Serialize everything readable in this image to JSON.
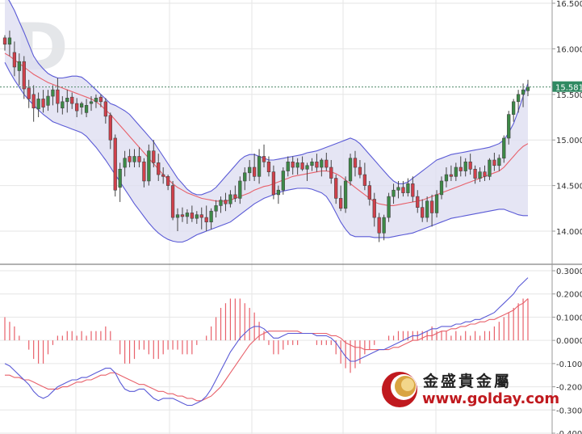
{
  "chart_data": [
    {
      "type": "candlestick",
      "indicators": [
        "Bollinger Bands",
        "Moving Average"
      ],
      "ylim": [
        13.5,
        16.5
      ],
      "y_ticks": [
        "16.500",
        "16.000",
        "15.500",
        "15.000",
        "14.500",
        "14.000"
      ],
      "last_price_label": "15.581",
      "last_price": 15.581,
      "grid": true,
      "background_letters": "D",
      "colors": {
        "up": "#3c8a46",
        "down": "#d2404b",
        "band": "#5a5ad6",
        "band_fill": "#dcdcf0",
        "ma": "#e8606a",
        "price_line": "#4f8a6a"
      },
      "candles": [
        [
          16.12,
          16.15,
          15.98,
          16.05
        ],
        [
          16.05,
          16.2,
          15.92,
          16.12
        ],
        [
          15.96,
          16.08,
          15.7,
          15.8
        ],
        [
          15.76,
          15.95,
          15.6,
          15.86
        ],
        [
          15.86,
          15.92,
          15.45,
          15.56
        ],
        [
          15.57,
          15.66,
          15.35,
          15.45
        ],
        [
          15.5,
          15.6,
          15.2,
          15.35
        ],
        [
          15.34,
          15.52,
          15.25,
          15.45
        ],
        [
          15.45,
          15.55,
          15.3,
          15.36
        ],
        [
          15.38,
          15.55,
          15.32,
          15.48
        ],
        [
          15.48,
          15.6,
          15.38,
          15.55
        ],
        [
          15.55,
          15.68,
          15.3,
          15.4
        ],
        [
          15.35,
          15.48,
          15.28,
          15.42
        ],
        [
          15.42,
          15.55,
          15.3,
          15.46
        ],
        [
          15.47,
          15.52,
          15.34,
          15.4
        ],
        [
          15.4,
          15.46,
          15.25,
          15.32
        ],
        [
          15.36,
          15.42,
          15.28,
          15.4
        ],
        [
          15.3,
          15.45,
          15.25,
          15.38
        ],
        [
          15.4,
          15.48,
          15.32,
          15.42
        ],
        [
          15.42,
          15.5,
          15.35,
          15.46
        ],
        [
          15.47,
          15.5,
          15.36,
          15.42
        ],
        [
          15.42,
          15.46,
          15.18,
          15.26
        ],
        [
          15.27,
          15.3,
          14.9,
          15.0
        ],
        [
          15.02,
          15.06,
          14.38,
          14.45
        ],
        [
          14.48,
          14.75,
          14.32,
          14.68
        ],
        [
          14.7,
          14.88,
          14.6,
          14.8
        ],
        [
          14.82,
          14.9,
          14.7,
          14.76
        ],
        [
          14.76,
          14.9,
          14.7,
          14.82
        ],
        [
          14.82,
          14.92,
          14.7,
          14.76
        ],
        [
          14.76,
          14.8,
          14.48,
          14.55
        ],
        [
          14.55,
          14.95,
          14.5,
          14.88
        ],
        [
          14.88,
          15.0,
          14.7,
          14.75
        ],
        [
          14.75,
          14.85,
          14.55,
          14.62
        ],
        [
          14.62,
          14.7,
          14.52,
          14.6
        ],
        [
          14.6,
          14.62,
          14.45,
          14.5
        ],
        [
          14.5,
          14.55,
          14.12,
          14.15
        ],
        [
          14.15,
          14.25,
          14.0,
          14.18
        ],
        [
          14.18,
          14.26,
          14.1,
          14.16
        ],
        [
          14.16,
          14.24,
          14.08,
          14.2
        ],
        [
          14.2,
          14.28,
          14.1,
          14.14
        ],
        [
          14.14,
          14.22,
          14.08,
          14.18
        ],
        [
          14.18,
          14.26,
          14.02,
          14.15
        ],
        [
          14.15,
          14.28,
          14.0,
          14.1
        ],
        [
          14.1,
          14.25,
          14.02,
          14.22
        ],
        [
          14.22,
          14.34,
          14.15,
          14.28
        ],
        [
          14.28,
          14.38,
          14.2,
          14.34
        ],
        [
          14.34,
          14.42,
          14.22,
          14.3
        ],
        [
          14.3,
          14.45,
          14.26,
          14.4
        ],
        [
          14.4,
          14.5,
          14.32,
          14.36
        ],
        [
          14.36,
          14.6,
          14.3,
          14.55
        ],
        [
          14.55,
          14.7,
          14.45,
          14.64
        ],
        [
          14.64,
          14.78,
          14.55,
          14.7
        ],
        [
          14.7,
          14.85,
          14.55,
          14.6
        ],
        [
          14.6,
          14.9,
          14.52,
          14.82
        ],
        [
          14.82,
          14.95,
          14.7,
          14.76
        ],
        [
          14.76,
          14.82,
          14.6,
          14.65
        ],
        [
          14.65,
          14.72,
          14.35,
          14.4
        ],
        [
          14.4,
          14.5,
          14.3,
          14.45
        ],
        [
          14.45,
          14.7,
          14.4,
          14.66
        ],
        [
          14.66,
          14.82,
          14.6,
          14.76
        ],
        [
          14.76,
          14.82,
          14.62,
          14.7
        ],
        [
          14.7,
          14.8,
          14.62,
          14.75
        ],
        [
          14.75,
          14.82,
          14.66,
          14.68
        ],
        [
          14.68,
          14.75,
          14.55,
          14.72
        ],
        [
          14.72,
          14.8,
          14.66,
          14.76
        ],
        [
          14.76,
          14.85,
          14.65,
          14.7
        ],
        [
          14.7,
          14.8,
          14.6,
          14.78
        ],
        [
          14.78,
          14.86,
          14.66,
          14.7
        ],
        [
          14.7,
          14.78,
          14.52,
          14.58
        ],
        [
          14.58,
          14.62,
          14.3,
          14.36
        ],
        [
          14.36,
          14.5,
          14.22,
          14.25
        ],
        [
          14.25,
          14.6,
          14.2,
          14.55
        ],
        [
          14.55,
          14.85,
          14.5,
          14.8
        ],
        [
          14.8,
          14.88,
          14.6,
          14.7
        ],
        [
          14.7,
          14.78,
          14.58,
          14.62
        ],
        [
          14.62,
          14.75,
          14.45,
          14.5
        ],
        [
          14.5,
          14.55,
          14.28,
          14.35
        ],
        [
          14.35,
          14.42,
          14.05,
          14.15
        ],
        [
          14.15,
          14.2,
          13.88,
          13.98
        ],
        [
          13.98,
          14.18,
          13.9,
          14.15
        ],
        [
          14.15,
          14.42,
          14.1,
          14.38
        ],
        [
          14.38,
          14.52,
          14.3,
          14.45
        ],
        [
          14.45,
          14.55,
          14.36,
          14.48
        ],
        [
          14.48,
          14.55,
          14.38,
          14.42
        ],
        [
          14.42,
          14.58,
          14.38,
          14.52
        ],
        [
          14.52,
          14.6,
          14.32,
          14.38
        ],
        [
          14.38,
          14.45,
          14.2,
          14.26
        ],
        [
          14.26,
          14.35,
          14.1,
          14.15
        ],
        [
          14.15,
          14.38,
          14.1,
          14.33
        ],
        [
          14.33,
          14.4,
          14.05,
          14.2
        ],
        [
          14.2,
          14.45,
          14.15,
          14.4
        ],
        [
          14.4,
          14.6,
          14.35,
          14.55
        ],
        [
          14.55,
          14.7,
          14.48,
          14.62
        ],
        [
          14.62,
          14.72,
          14.55,
          14.6
        ],
        [
          14.6,
          14.75,
          14.55,
          14.7
        ],
        [
          14.7,
          14.82,
          14.6,
          14.66
        ],
        [
          14.66,
          14.8,
          14.6,
          14.76
        ],
        [
          14.76,
          14.85,
          14.62,
          14.68
        ],
        [
          14.68,
          14.72,
          14.52,
          14.58
        ],
        [
          14.58,
          14.7,
          14.54,
          14.65
        ],
        [
          14.65,
          14.72,
          14.55,
          14.6
        ],
        [
          14.6,
          14.8,
          14.56,
          14.78
        ],
        [
          14.78,
          14.86,
          14.66,
          14.72
        ],
        [
          14.72,
          14.84,
          14.66,
          14.8
        ],
        [
          14.8,
          15.05,
          14.75,
          15.02
        ],
        [
          15.02,
          15.32,
          14.95,
          15.28
        ],
        [
          15.28,
          15.45,
          15.2,
          15.42
        ],
        [
          15.42,
          15.55,
          15.3,
          15.5
        ],
        [
          15.5,
          15.62,
          15.36,
          15.55
        ],
        [
          15.54,
          15.66,
          15.48,
          15.58
        ]
      ],
      "bollinger_upper": [
        16.6,
        16.52,
        16.42,
        16.3,
        16.18,
        16.05,
        15.92,
        15.84,
        15.78,
        15.73,
        15.7,
        15.68,
        15.68,
        15.69,
        15.7,
        15.7,
        15.69,
        15.65,
        15.6,
        15.55,
        15.5,
        15.45,
        15.4,
        15.38,
        15.35,
        15.32,
        15.28,
        15.22,
        15.16,
        15.1,
        15.04,
        14.98,
        14.9,
        14.82,
        14.74,
        14.66,
        14.58,
        14.52,
        14.46,
        14.42,
        14.4,
        14.4,
        14.42,
        14.44,
        14.48,
        14.54,
        14.6,
        14.66,
        14.72,
        14.78,
        14.82,
        14.84,
        14.84,
        14.82,
        14.8,
        14.78,
        14.78,
        14.79,
        14.8,
        14.81,
        14.82,
        14.83,
        14.84,
        14.86,
        14.87,
        14.88,
        14.9,
        14.92,
        14.94,
        14.96,
        14.98,
        15.0,
        15.02,
        15.0,
        14.96,
        14.9,
        14.84,
        14.78,
        14.72,
        14.66,
        14.6,
        14.55,
        14.52,
        14.52,
        14.54,
        14.58,
        14.62,
        14.66,
        14.7,
        14.74,
        14.78,
        14.8,
        14.82,
        14.84,
        14.85,
        14.86,
        14.87,
        14.88,
        14.89,
        14.9,
        14.91,
        14.92,
        14.94,
        14.96,
        15.0,
        15.08,
        15.18,
        15.32,
        15.48,
        15.62
      ],
      "bollinger_lower": [
        15.85,
        15.75,
        15.66,
        15.58,
        15.5,
        15.44,
        15.38,
        15.33,
        15.28,
        15.24,
        15.2,
        15.18,
        15.16,
        15.14,
        15.12,
        15.1,
        15.08,
        15.04,
        14.98,
        14.92,
        14.85,
        14.78,
        14.7,
        14.62,
        14.54,
        14.46,
        14.38,
        14.3,
        14.23,
        14.16,
        14.09,
        14.03,
        13.98,
        13.94,
        13.91,
        13.89,
        13.88,
        13.88,
        13.9,
        13.93,
        13.96,
        13.98,
        14.0,
        14.02,
        14.04,
        14.06,
        14.08,
        14.1,
        14.14,
        14.18,
        14.22,
        14.26,
        14.3,
        14.33,
        14.36,
        14.38,
        14.4,
        14.42,
        14.44,
        14.45,
        14.46,
        14.47,
        14.47,
        14.47,
        14.46,
        14.44,
        14.42,
        14.38,
        14.3,
        14.2,
        14.1,
        14.02,
        13.96,
        13.94,
        13.94,
        13.94,
        13.94,
        13.93,
        13.93,
        13.93,
        13.93,
        13.94,
        13.95,
        13.96,
        13.97,
        13.98,
        14.0,
        14.02,
        14.04,
        14.06,
        14.08,
        14.1,
        14.12,
        14.14,
        14.15,
        14.16,
        14.17,
        14.18,
        14.19,
        14.2,
        14.21,
        14.22,
        14.23,
        14.24,
        14.24,
        14.22,
        14.2,
        14.18,
        14.17,
        14.17
      ],
      "ma": [
        15.95,
        15.92,
        15.88,
        15.84,
        15.8,
        15.76,
        15.72,
        15.69,
        15.66,
        15.63,
        15.61,
        15.59,
        15.57,
        15.55,
        15.53,
        15.51,
        15.49,
        15.47,
        15.45,
        15.42,
        15.38,
        15.33,
        15.28,
        15.22,
        15.16,
        15.1,
        15.04,
        14.98,
        14.92,
        14.86,
        14.8,
        14.74,
        14.68,
        14.62,
        14.57,
        14.52,
        14.48,
        14.45,
        14.42,
        14.4,
        14.38,
        14.36,
        14.35,
        14.34,
        14.33,
        14.33,
        14.33,
        14.34,
        14.36,
        14.38,
        14.4,
        14.42,
        14.45,
        14.47,
        14.49,
        14.5,
        14.52,
        14.54,
        14.56,
        14.58,
        14.6,
        14.61,
        14.62,
        14.63,
        14.64,
        14.65,
        14.66,
        14.66,
        14.65,
        14.63,
        14.6,
        14.56,
        14.52,
        14.48,
        14.44,
        14.4,
        14.36,
        14.32,
        14.3,
        14.29,
        14.28,
        14.28,
        14.29,
        14.3,
        14.31,
        14.32,
        14.33,
        14.34,
        14.36,
        14.38,
        14.4,
        14.42,
        14.44,
        14.46,
        14.48,
        14.5,
        14.52,
        14.54,
        14.56,
        14.58,
        14.6,
        14.62,
        14.64,
        14.66,
        14.7,
        14.76,
        14.82,
        14.88,
        14.93,
        14.96
      ]
    },
    {
      "type": "macd",
      "ylim": [
        -0.4,
        0.3
      ],
      "y_ticks": [
        "0.3000",
        "0.2000",
        "0.1000",
        "0.0000",
        "-0.1000",
        "-0.2000",
        "-0.3000",
        "-0.4000"
      ],
      "grid": true,
      "colors": {
        "macd": "#5a5ad6",
        "signal": "#e8606a",
        "histogram": "#e8606a"
      },
      "macd": [
        -0.1,
        -0.11,
        -0.13,
        -0.15,
        -0.17,
        -0.19,
        -0.22,
        -0.24,
        -0.25,
        -0.24,
        -0.22,
        -0.2,
        -0.19,
        -0.18,
        -0.17,
        -0.17,
        -0.16,
        -0.16,
        -0.15,
        -0.14,
        -0.13,
        -0.12,
        -0.12,
        -0.14,
        -0.18,
        -0.21,
        -0.22,
        -0.22,
        -0.21,
        -0.21,
        -0.23,
        -0.25,
        -0.26,
        -0.25,
        -0.25,
        -0.25,
        -0.26,
        -0.27,
        -0.28,
        -0.28,
        -0.27,
        -0.26,
        -0.24,
        -0.21,
        -0.17,
        -0.13,
        -0.09,
        -0.05,
        -0.02,
        0.01,
        0.03,
        0.05,
        0.06,
        0.06,
        0.05,
        0.03,
        0.01,
        0.01,
        0.02,
        0.03,
        0.03,
        0.03,
        0.03,
        0.03,
        0.03,
        0.02,
        0.02,
        0.02,
        0.01,
        -0.01,
        -0.04,
        -0.07,
        -0.09,
        -0.09,
        -0.08,
        -0.07,
        -0.06,
        -0.05,
        -0.04,
        -0.04,
        -0.03,
        -0.02,
        -0.01,
        0.0,
        0.01,
        0.02,
        0.02,
        0.03,
        0.04,
        0.05,
        0.05,
        0.06,
        0.06,
        0.06,
        0.07,
        0.07,
        0.08,
        0.08,
        0.09,
        0.09,
        0.1,
        0.11,
        0.12,
        0.14,
        0.16,
        0.18,
        0.2,
        0.23,
        0.25,
        0.27
      ],
      "signal": [
        -0.15,
        -0.15,
        -0.16,
        -0.16,
        -0.17,
        -0.17,
        -0.18,
        -0.19,
        -0.2,
        -0.21,
        -0.21,
        -0.21,
        -0.2,
        -0.2,
        -0.19,
        -0.18,
        -0.18,
        -0.17,
        -0.17,
        -0.16,
        -0.15,
        -0.15,
        -0.14,
        -0.14,
        -0.15,
        -0.16,
        -0.17,
        -0.18,
        -0.19,
        -0.19,
        -0.2,
        -0.21,
        -0.22,
        -0.22,
        -0.23,
        -0.23,
        -0.24,
        -0.24,
        -0.25,
        -0.25,
        -0.26,
        -0.26,
        -0.25,
        -0.24,
        -0.22,
        -0.2,
        -0.17,
        -0.14,
        -0.11,
        -0.08,
        -0.05,
        -0.02,
        0.0,
        0.02,
        0.03,
        0.04,
        0.04,
        0.04,
        0.04,
        0.04,
        0.04,
        0.04,
        0.03,
        0.03,
        0.03,
        0.03,
        0.03,
        0.03,
        0.02,
        0.02,
        0.01,
        -0.01,
        -0.02,
        -0.03,
        -0.03,
        -0.04,
        -0.04,
        -0.04,
        -0.04,
        -0.04,
        -0.04,
        -0.03,
        -0.03,
        -0.02,
        -0.01,
        0.0,
        0.0,
        0.01,
        0.02,
        0.02,
        0.03,
        0.04,
        0.04,
        0.05,
        0.05,
        0.06,
        0.06,
        0.07,
        0.07,
        0.08,
        0.08,
        0.09,
        0.09,
        0.1,
        0.11,
        0.12,
        0.13,
        0.15,
        0.16,
        0.18
      ]
    }
  ],
  "watermark": {
    "company": "金盛貴金屬",
    "url": "www.golday.com"
  }
}
